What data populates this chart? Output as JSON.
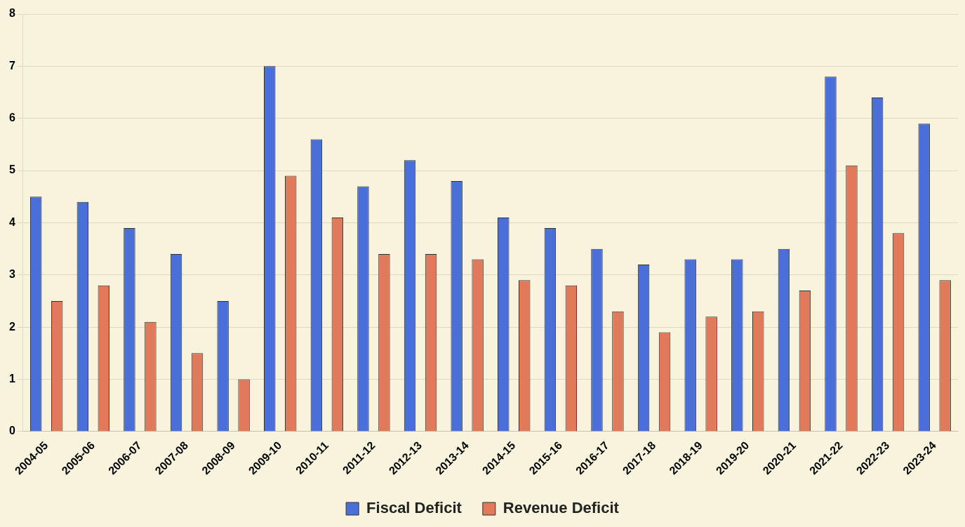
{
  "chart_data": {
    "type": "bar",
    "categories": [
      "2004-05",
      "2005-06",
      "2006-07",
      "2007-08",
      "2008-09",
      "2009-10",
      "2010-11",
      "2011-12",
      "2012-13",
      "2013-14",
      "2014-15",
      "2015-16",
      "2016-17",
      "2017-18",
      "2018-19",
      "2019-20",
      "2020-21",
      "2021-22",
      "2022-23",
      "2023-24"
    ],
    "series": [
      {
        "name": "Fiscal Deficit",
        "color": "#4a6fd8",
        "values": [
          4.5,
          4.4,
          3.9,
          3.4,
          2.5,
          7.0,
          5.6,
          4.7,
          5.2,
          4.8,
          4.1,
          3.9,
          3.5,
          3.2,
          3.3,
          3.3,
          3.5,
          6.8,
          6.4,
          5.9
        ]
      },
      {
        "name": "Revenue Deficit",
        "color": "#e07a5a",
        "values": [
          2.5,
          2.8,
          2.1,
          1.5,
          1.0,
          4.9,
          4.1,
          3.4,
          3.4,
          3.3,
          2.9,
          2.8,
          2.3,
          1.9,
          2.2,
          2.3,
          2.7,
          5.1,
          3.8,
          2.9
        ]
      }
    ],
    "ylim": [
      0,
      8
    ],
    "yticks": [
      0,
      1,
      2,
      3,
      4,
      5,
      6,
      7,
      8
    ],
    "grid": "y",
    "legend": "bottom"
  }
}
